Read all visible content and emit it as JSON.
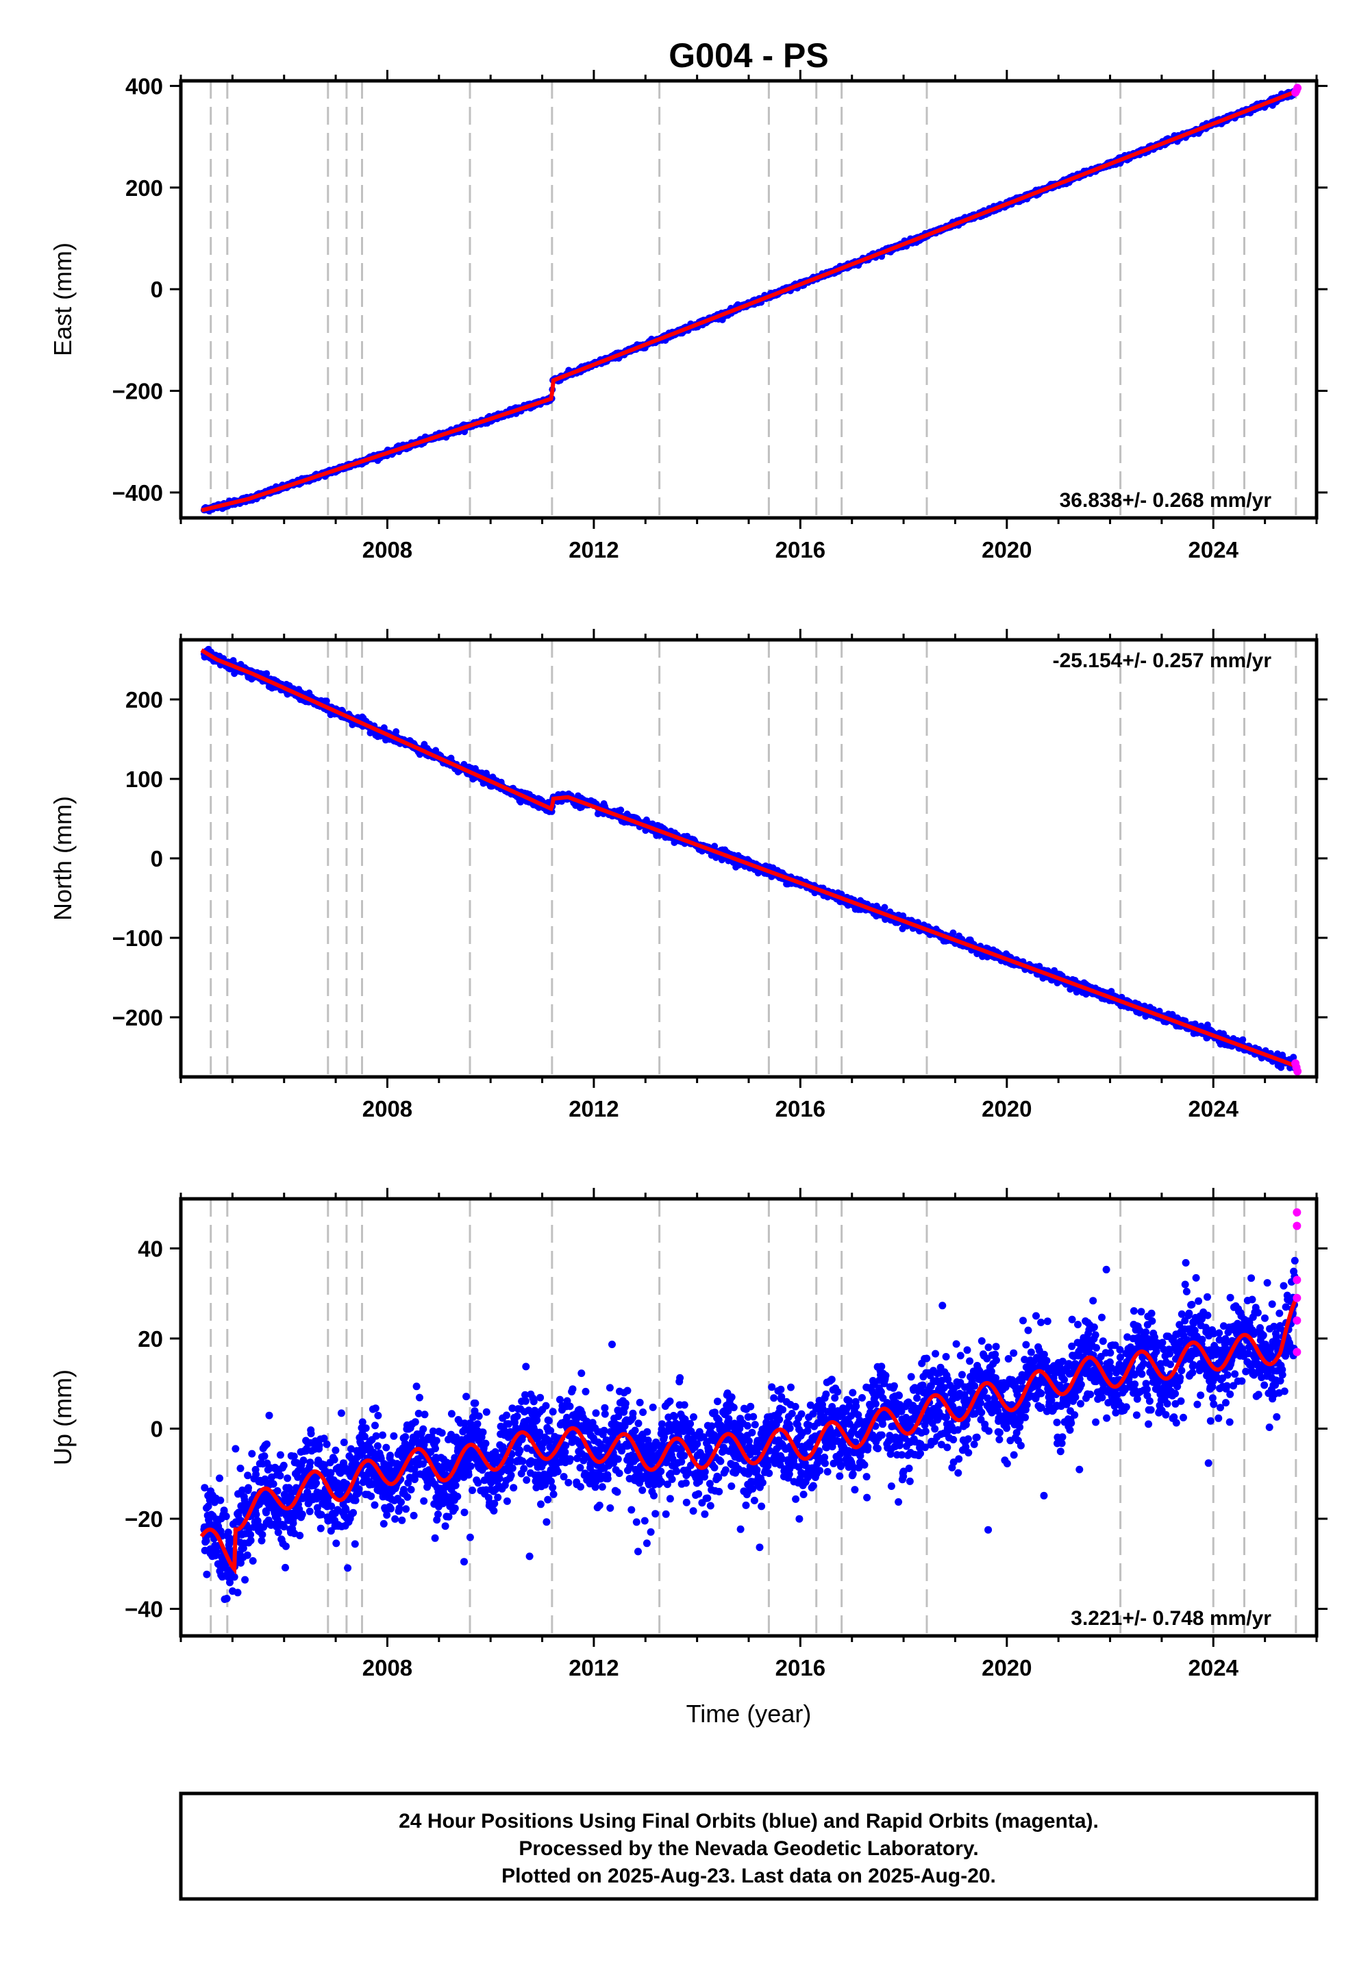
{
  "chart_title": "G004 - PS",
  "x_axis_label": "Time (year)",
  "footer": {
    "line1": "24 Hour Positions Using Final Orbits (blue) and Rapid Orbits (magenta).",
    "line2": "Processed by the Nevada Geodetic Laboratory.",
    "line3": "Plotted on 2025-Aug-23. Last data on 2025-Aug-20."
  },
  "colors": {
    "final_orbits": "#0000ff",
    "rapid_orbits": "#ff00ff",
    "model_fit": "#ff0000",
    "event_lines": "#c0c0c0",
    "frame": "#000000"
  },
  "chart_data": [
    {
      "type": "scatter",
      "component": "east",
      "ylabel": "East (mm)",
      "xlim": [
        2004.0,
        2026.0
      ],
      "ylim": [
        -450,
        410
      ],
      "xticks": [
        2008,
        2012,
        2016,
        2020,
        2024
      ],
      "yticks": [
        -400,
        -200,
        0,
        200,
        400
      ],
      "ytick_labels": [
        "−400",
        "−200",
        "0",
        "200",
        "400"
      ],
      "rate_label": "36.838+/- 0.268 mm/yr",
      "rate_position": "bottom-right",
      "trend_segments": [
        {
          "x0": 2004.4,
          "x1": 2011.19,
          "y0": -435,
          "y1": -215
        },
        {
          "x0": 2011.19,
          "x1": 2025.63,
          "y0": -180,
          "y1": 390
        }
      ],
      "fit_line": {
        "x": [
          2004.4,
          2005.3,
          2011.19,
          2011.2,
          2025.63
        ],
        "y": [
          -435,
          -413,
          -215,
          -180,
          390
        ]
      },
      "rapid_points": {
        "x": [
          2025.59,
          2025.61,
          2025.63
        ],
        "y": [
          387,
          391,
          396
        ]
      },
      "noise_mm": 2.5
    },
    {
      "type": "scatter",
      "component": "north",
      "ylabel": "North (mm)",
      "xlim": [
        2004.0,
        2026.0
      ],
      "ylim": [
        -275,
        275
      ],
      "xticks": [
        2008,
        2012,
        2016,
        2020,
        2024
      ],
      "yticks": [
        -200,
        -100,
        0,
        100,
        200
      ],
      "ytick_labels": [
        "−200",
        "−100",
        "0",
        "100",
        "200"
      ],
      "rate_label": "-25.154+/- 0.257 mm/yr",
      "rate_position": "top-right",
      "trend_segments": [
        {
          "x0": 2004.4,
          "x1": 2011.19,
          "y0": 262,
          "y1": 62
        },
        {
          "x0": 2011.19,
          "x1": 2025.63,
          "y0": 77,
          "y1": -262
        }
      ],
      "fit_line": {
        "x": [
          2004.4,
          2004.7,
          2005.4,
          2011.19,
          2011.2,
          2011.5,
          2025.63
        ],
        "y": [
          262,
          250,
          232,
          62,
          75,
          77,
          -262
        ]
      },
      "rapid_points": {
        "x": [
          2025.59,
          2025.61,
          2025.63
        ],
        "y": [
          -258,
          -263,
          -268
        ]
      },
      "noise_mm": 3
    },
    {
      "type": "scatter",
      "component": "up",
      "ylabel": "Up (mm)",
      "xlim": [
        2004.0,
        2026.0
      ],
      "ylim": [
        -46,
        51
      ],
      "xticks": [
        2008,
        2012,
        2016,
        2020,
        2024
      ],
      "yticks": [
        -40,
        -20,
        0,
        20,
        40
      ],
      "ytick_labels": [
        "−40",
        "−20",
        "0",
        "20",
        "40"
      ],
      "rate_label": "3.221+/- 0.748 mm/yr",
      "rate_position": "bottom-right",
      "annual_amplitude_mm": 3.5,
      "noise_mm": 5,
      "fit_line": {
        "x": [
          2004.4,
          2004.8,
          2005.05,
          2005.06,
          2005.4,
          2006.3,
          2006.9,
          2007.5,
          2008.3,
          2009.3,
          2010.3,
          2011.2,
          2012.2,
          2013.3,
          2014.3,
          2015.3,
          2016.3,
          2017.3,
          2018.3,
          2019.3,
          2020.3,
          2021.3,
          2022.3,
          2023.3,
          2024.3,
          2025.3,
          2025.63
        ],
        "y": [
          -25,
          -27,
          -28,
          -19,
          -18,
          -13,
          -13,
          -11,
          -8,
          -8,
          -5,
          -3,
          -4,
          -6,
          -5,
          -4,
          -3,
          0,
          3,
          6,
          8,
          12,
          13,
          15,
          17,
          18,
          26
        ]
      },
      "rapid_points": {
        "x": [
          2025.62,
          2025.62,
          2025.62,
          2025.62,
          2025.62,
          2025.62
        ],
        "y": [
          48,
          45,
          33,
          29,
          24,
          17
        ]
      }
    }
  ],
  "event_lines_year": [
    2004.58,
    2004.9,
    2006.85,
    2007.21,
    2007.51,
    2009.6,
    2011.19,
    2013.27,
    2015.39,
    2016.31,
    2016.8,
    2018.45,
    2022.2,
    2024.0,
    2024.6,
    2025.6
  ]
}
